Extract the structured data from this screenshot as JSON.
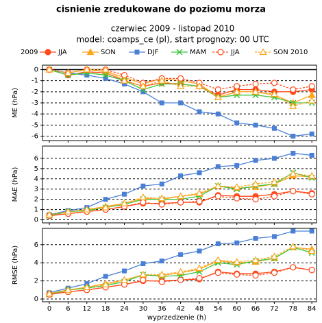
{
  "title": "cisnienie zredukowane do poziomu morza",
  "subtitle": [
    "czerwiec 2009 - listopad 2010",
    "model: coamps_ce (pl), start prognozy: 00 UTC"
  ],
  "legend": {
    "title": "2009",
    "series": [
      {
        "name": "JJA",
        "color": "#ff4a1c",
        "dashed": false,
        "marker": "circle"
      },
      {
        "name": "SON",
        "color": "#ffa51c",
        "dashed": false,
        "marker": "triangle"
      },
      {
        "name": "DJF",
        "color": "#4a7fd6",
        "dashed": false,
        "marker": "square"
      },
      {
        "name": "MAM",
        "color": "#3ec43e",
        "dashed": false,
        "marker": "cross"
      },
      {
        "name": "JJA",
        "color": "#ff4a1c",
        "dashed": true,
        "marker": "open-circle"
      },
      {
        "name": "SON 2010",
        "color": "#ffa51c",
        "dashed": true,
        "marker": "open-triangle"
      }
    ]
  },
  "xlabel": "wyprzedzenie (h)",
  "chart_data": [
    {
      "type": "line",
      "ylabel": "ME (hPa)",
      "x": [
        0,
        6,
        12,
        18,
        24,
        30,
        36,
        42,
        48,
        54,
        60,
        66,
        72,
        78,
        84
      ],
      "xlim": [
        -2.2,
        85.5
      ],
      "ylim": [
        -6.4,
        0.4
      ],
      "yticks": [
        -6,
        -5,
        -4,
        -3,
        -2,
        -1,
        0
      ],
      "zero_line": true,
      "grid": true,
      "series": [
        {
          "values": [
            0,
            -0.5,
            -0.2,
            -0.3,
            -1,
            -1.5,
            -1.2,
            -1.3,
            -1.5,
            -2.3,
            -1.8,
            -1.8,
            -2,
            -2,
            -1.8
          ]
        },
        {
          "values": [
            0,
            -0.3,
            0,
            -0.2,
            -0.7,
            -1.3,
            -0.8,
            -1,
            -1.3,
            -2.5,
            -2,
            -2,
            -2.3,
            -3,
            -2.3
          ]
        },
        {
          "values": [
            0,
            -0.3,
            -0.5,
            -0.8,
            -1.3,
            -2,
            -3,
            -3,
            -3.8,
            -4,
            -4.8,
            -5,
            -5.3,
            -6,
            -5.8
          ]
        },
        {
          "values": [
            0,
            -0.5,
            -0.3,
            -0.5,
            -1,
            -1.8,
            -1.3,
            -1.3,
            -1.5,
            -2.5,
            -2.3,
            -2.3,
            -2.5,
            -3,
            -3
          ]
        },
        {
          "values": [
            0,
            -0.3,
            0,
            0,
            -0.5,
            -1.2,
            -0.8,
            -0.8,
            -1.2,
            -1.8,
            -1.5,
            -1.3,
            -1.2,
            -1.8,
            -1.5
          ]
        },
        {
          "values": [
            0,
            -0.3,
            0,
            0,
            -1,
            -1.5,
            -1,
            -1.5,
            -1.5,
            -2.5,
            -2,
            -2,
            -2.2,
            -3.3,
            -2.8
          ]
        }
      ]
    },
    {
      "type": "line",
      "ylabel": "MAE (hPa)",
      "x": [
        0,
        6,
        12,
        18,
        24,
        30,
        36,
        42,
        48,
        54,
        60,
        66,
        72,
        78,
        84
      ],
      "xlim": [
        -2.2,
        85.5
      ],
      "ylim": [
        -0.3,
        7.2
      ],
      "yticks": [
        0,
        1,
        2,
        3,
        4,
        5,
        6
      ],
      "zero_line": false,
      "grid": true,
      "series": [
        {
          "values": [
            0.4,
            0.6,
            0.8,
            1,
            1.3,
            1.6,
            1.6,
            1.7,
            1.7,
            2.4,
            2.3,
            2.3,
            2.5,
            2.8,
            2.6
          ]
        },
        {
          "values": [
            0.5,
            0.8,
            1,
            1.3,
            1.6,
            2.1,
            2,
            2.3,
            2.5,
            3.3,
            3.1,
            3.2,
            3.5,
            4.3,
            4.2
          ]
        },
        {
          "values": [
            0.5,
            0.9,
            1.2,
            2,
            2.5,
            3.3,
            3.5,
            4.3,
            4.6,
            5.2,
            5.3,
            5.8,
            6,
            6.5,
            6.3
          ]
        },
        {
          "values": [
            0.4,
            0.8,
            0.9,
            1.2,
            1.5,
            2,
            2,
            2,
            2.3,
            3.3,
            3,
            3.3,
            3.5,
            4.6,
            4.1
          ]
        },
        {
          "values": [
            0.4,
            0.6,
            0.8,
            1,
            1.3,
            1.7,
            1.5,
            1.7,
            1.8,
            2.3,
            2.1,
            2,
            2.3,
            2.8,
            2.5
          ]
        },
        {
          "values": [
            0.5,
            0.8,
            1,
            1.2,
            1.6,
            2.2,
            2.1,
            2.3,
            2.6,
            3.3,
            3.2,
            3.5,
            3.7,
            4.5,
            4.3
          ]
        }
      ]
    },
    {
      "type": "line",
      "ylabel": "RMSE (hPa)",
      "x": [
        0,
        6,
        12,
        18,
        24,
        30,
        36,
        42,
        48,
        54,
        60,
        66,
        72,
        78,
        84
      ],
      "xlim": [
        -2.2,
        85.5
      ],
      "xticks": [
        0,
        6,
        12,
        18,
        24,
        30,
        36,
        42,
        48,
        54,
        60,
        66,
        72,
        78,
        84
      ],
      "ylim": [
        -0.3,
        7.8
      ],
      "yticks": [
        0,
        2,
        4,
        6
      ],
      "zero_line": false,
      "grid": true,
      "series": [
        {
          "values": [
            0.5,
            0.8,
            1,
            1.3,
            1.6,
            2,
            2,
            2.1,
            2.2,
            3,
            2.8,
            2.8,
            3,
            3.5,
            3.2
          ]
        },
        {
          "values": [
            0.6,
            1,
            1.3,
            1.7,
            2.1,
            2.6,
            2.6,
            2.9,
            3.3,
            4.2,
            4,
            4.1,
            4.5,
            5.7,
            5.5
          ]
        },
        {
          "values": [
            0.7,
            1.2,
            1.7,
            2.5,
            3.1,
            3.9,
            4.2,
            4.9,
            5.3,
            6.1,
            6.2,
            6.7,
            6.9,
            7.5,
            7.5
          ]
        },
        {
          "values": [
            0.5,
            1,
            1.2,
            1.5,
            1.9,
            2.7,
            2.5,
            2.6,
            3,
            4,
            3.8,
            4.2,
            4.5,
            5.7,
            5.1
          ]
        },
        {
          "values": [
            0.5,
            0.8,
            1,
            1.3,
            1.6,
            2.1,
            1.9,
            2.1,
            2.3,
            2.9,
            2.7,
            2.6,
            2.9,
            3.5,
            3.2
          ]
        },
        {
          "values": [
            0.6,
            1,
            1.3,
            1.6,
            2.1,
            2.7,
            2.7,
            3,
            3.4,
            4.3,
            4.1,
            4.3,
            4.7,
            5.8,
            5.3
          ]
        }
      ]
    }
  ]
}
